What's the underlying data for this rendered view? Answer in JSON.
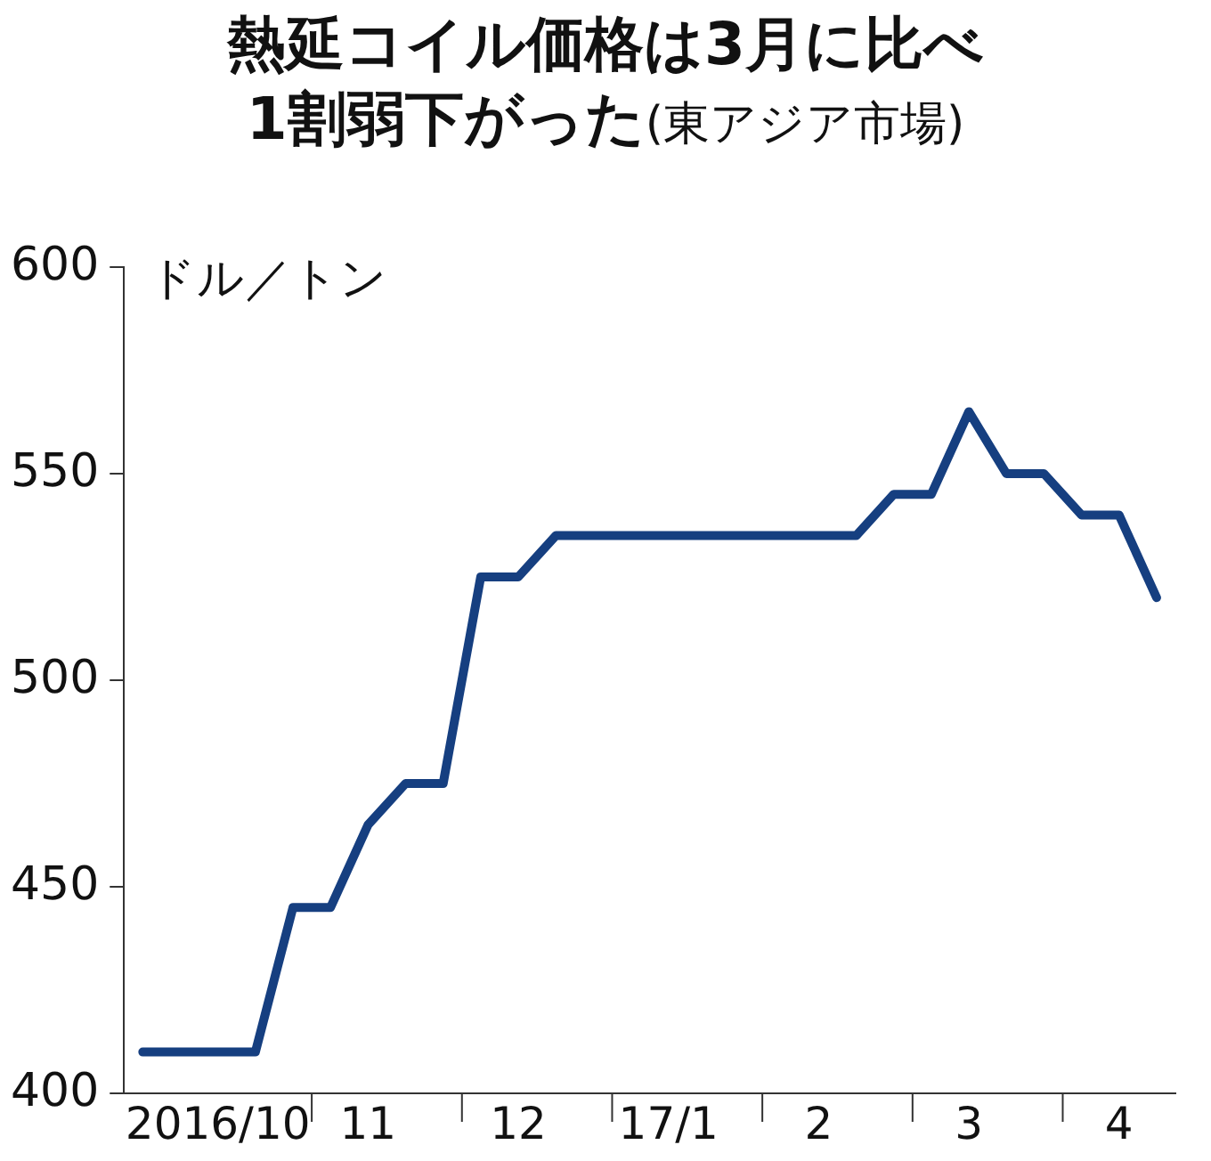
{
  "chart_data": {
    "type": "line",
    "title": "熱延コイル価格は3月に比べ\n1割弱下がった",
    "subtitle": "(東アジア市場)",
    "ylabel": "ドル／トン",
    "categories": [
      null,
      null,
      "2016/10",
      null,
      null,
      null,
      "11",
      null,
      null,
      null,
      "12",
      null,
      null,
      null,
      "17/1",
      null,
      null,
      null,
      "2",
      null,
      null,
      null,
      "3",
      null,
      null,
      null,
      "4",
      null
    ],
    "series": [
      {
        "color": "#163f80",
        "values": [
          410,
          410,
          410,
          410,
          445,
          445,
          465,
          475,
          475,
          525,
          525,
          535,
          535,
          535,
          535,
          535,
          535,
          535,
          535,
          535,
          545,
          545,
          565,
          550,
          550,
          540,
          540,
          520
        ]
      }
    ],
    "ylim": [
      400,
      600
    ],
    "yticks": [
      400,
      450,
      500,
      550,
      600
    ],
    "grid": false,
    "legend": false,
    "marker": "none",
    "line_style": "solid"
  }
}
